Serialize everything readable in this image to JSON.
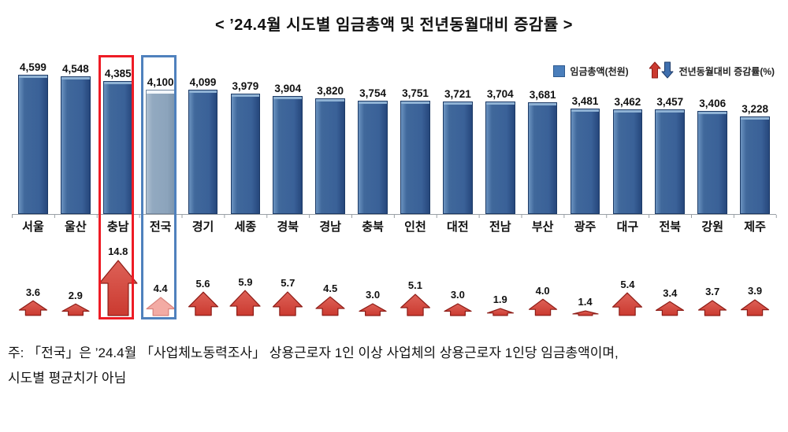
{
  "title": "< ’24.4월 시도별 임금총액 및 전년동월대비 증감률 >",
  "legend": {
    "wage_label": "임금총액(천원)",
    "rate_label": "전년동월대비 증감률(%)"
  },
  "note": {
    "line1": "주: 「전국」은 ’24.4월 「사업체노동력조사」 상용근로자 1인 이상 사업체의 상용근로자 1인당 임금총액이며,",
    "line2": "시도별 평균치가 아님"
  },
  "chart_data": {
    "type": "bar",
    "categories": [
      "서울",
      "울산",
      "충남",
      "전국",
      "경기",
      "세종",
      "경북",
      "경남",
      "충북",
      "인천",
      "대전",
      "전남",
      "부산",
      "광주",
      "대구",
      "전북",
      "강원",
      "제주"
    ],
    "series": [
      {
        "name": "임금총액(천원)",
        "values": [
          4599,
          4548,
          4385,
          4100,
          4099,
          3979,
          3904,
          3820,
          3754,
          3751,
          3721,
          3704,
          3681,
          3481,
          3462,
          3457,
          3406,
          3228
        ]
      },
      {
        "name": "전년동월대비 증감률(%)",
        "values": [
          3.6,
          2.9,
          14.8,
          4.4,
          5.6,
          5.9,
          5.7,
          4.5,
          3.0,
          5.1,
          3.0,
          1.9,
          4.0,
          1.4,
          5.4,
          3.4,
          3.7,
          3.9
        ]
      }
    ],
    "national_index": 3,
    "highlights": [
      {
        "index": 2,
        "name": "red-highlight-box",
        "color": "#ee1c25"
      },
      {
        "index": 3,
        "name": "blue-highlight-box",
        "color": "#4f81bd"
      }
    ],
    "ylim": [
      0,
      4599
    ],
    "grid": false,
    "legend_position": "top-right",
    "colors": {
      "bar": "#3a6198",
      "bar_border": "#1c3a66",
      "national_bar": "#8ca4bc",
      "arrow_fill": "#cb3a30",
      "arrow_fill_light": "#dd6157",
      "arrow_stroke": "#8e1d17",
      "national_arrow_fill": "#f3aba4",
      "national_arrow_stroke": "#d9847d",
      "legend_down_arrow": "#3f6fae",
      "legend_down_arrow_stroke": "#1f3d6b"
    }
  }
}
